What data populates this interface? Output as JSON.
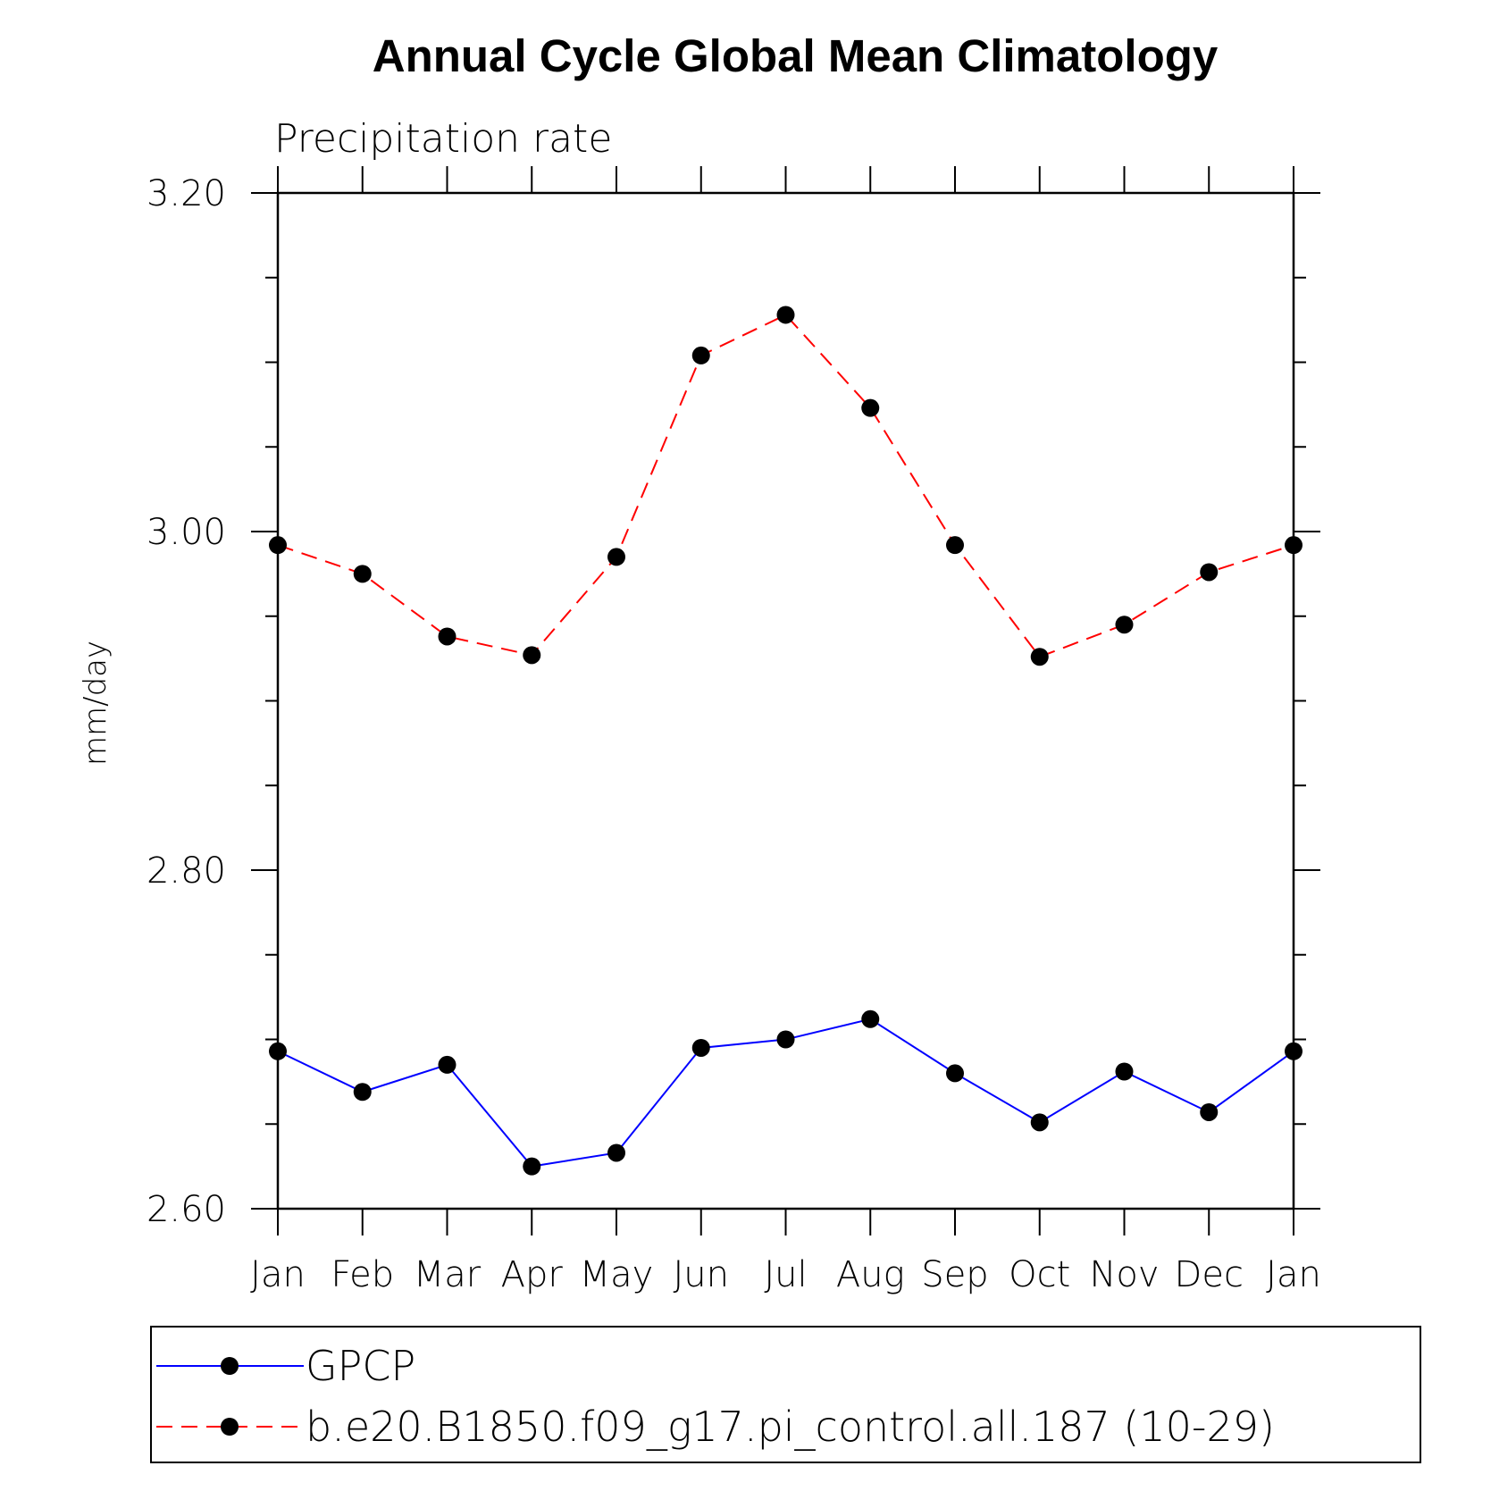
{
  "chart_data": {
    "type": "line",
    "title": "Annual Cycle Global Mean Climatology",
    "subtitle": "Precipitation rate",
    "ylabel": "mm/day",
    "xlabel": "",
    "categories": [
      "Jan",
      "Feb",
      "Mar",
      "Apr",
      "May",
      "Jun",
      "Jul",
      "Aug",
      "Sep",
      "Oct",
      "Nov",
      "Dec",
      "Jan"
    ],
    "ylim": [
      2.6,
      3.2
    ],
    "yticks": [
      "2.60",
      "2.80",
      "3.00",
      "3.20"
    ],
    "ytick_values": [
      2.6,
      2.8,
      3.0,
      3.2
    ],
    "series": [
      {
        "name": "GPCP",
        "color": "#0000ff",
        "line_style": "solid",
        "marker": "filled-circle",
        "values": [
          2.693,
          2.669,
          2.685,
          2.625,
          2.633,
          2.695,
          2.7,
          2.712,
          2.68,
          2.651,
          2.681,
          2.657,
          2.693
        ]
      },
      {
        "name": "b.e20.B1850.f09_g17.pi_control.all.187 (10-29)",
        "color": "#ff0000",
        "line_style": "dashed",
        "marker": "filled-circle",
        "values": [
          2.992,
          2.975,
          2.938,
          2.927,
          2.985,
          3.104,
          3.128,
          3.073,
          2.992,
          2.926,
          2.945,
          2.976,
          2.992
        ]
      }
    ],
    "grid": false,
    "legend_position": "bottom"
  }
}
